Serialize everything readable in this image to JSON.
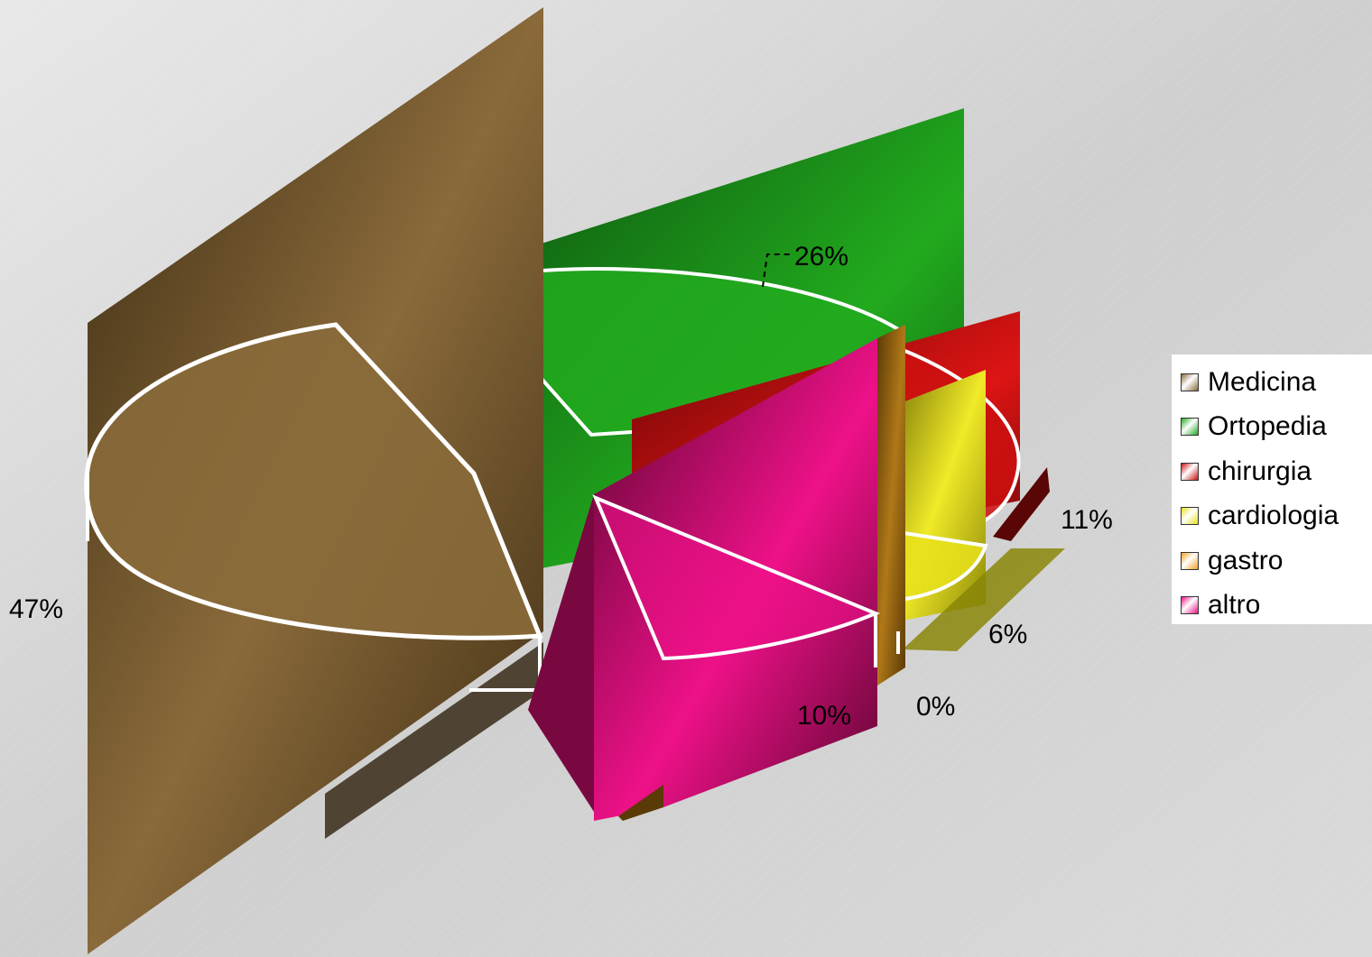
{
  "chart_data": {
    "type": "pie",
    "title": "",
    "categories": [
      "Medicina",
      "Ortopedia",
      "chirurgia",
      "cardiologia",
      "gastro",
      "altro"
    ],
    "values": [
      47,
      26,
      11,
      6,
      0,
      10
    ],
    "labels": [
      "47%",
      "26%",
      "11%",
      "6%",
      "0%",
      "10%"
    ],
    "colors": [
      "#8a6a3a",
      "#22aa1e",
      "#cc1010",
      "#e8e01c",
      "#f0a020",
      "#ee1188"
    ],
    "legend_position": "right",
    "style": "3d-exploded"
  }
}
